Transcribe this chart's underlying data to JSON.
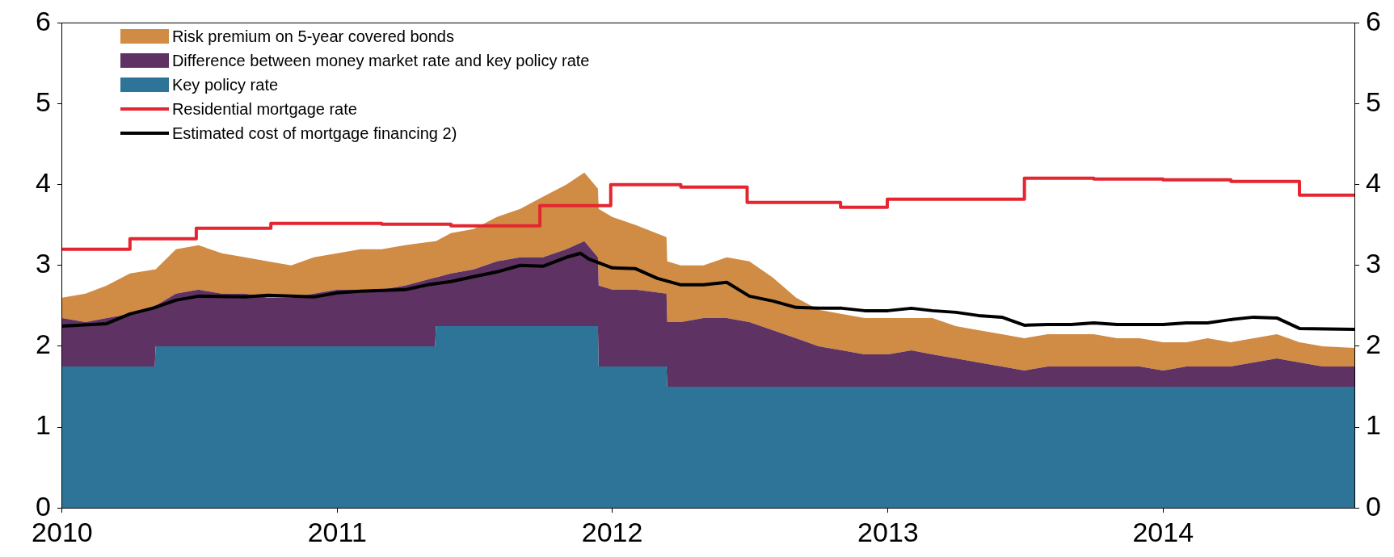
{
  "chart_data": {
    "type": "area",
    "stacked": true,
    "legend": "top left",
    "grid": false,
    "x": [
      "2010-01-01",
      "2010-02-01",
      "2010-03-01",
      "2010-04-01",
      "2010-05-04",
      "2010-05-05",
      "2010-06-01",
      "2010-07-01",
      "2010-08-01",
      "2010-09-01",
      "2010-10-01",
      "2010-11-01",
      "2010-12-01",
      "2011-01-01",
      "2011-02-01",
      "2011-03-01",
      "2011-04-01",
      "2011-05-11",
      "2011-05-12",
      "2011-06-01",
      "2011-07-01",
      "2011-08-01",
      "2011-09-01",
      "2011-10-01",
      "2011-11-01",
      "2011-11-25",
      "2011-12-13",
      "2011-12-14",
      "2012-01-01",
      "2012-02-01",
      "2012-03-13",
      "2012-03-14",
      "2012-04-01",
      "2012-05-01",
      "2012-06-01",
      "2012-07-01",
      "2012-08-01",
      "2012-09-01",
      "2012-10-01",
      "2012-11-01",
      "2012-12-01",
      "2013-01-01",
      "2013-02-01",
      "2013-03-01",
      "2013-04-01",
      "2013-05-01",
      "2013-06-01",
      "2013-07-01",
      "2013-08-01",
      "2013-09-01",
      "2013-10-01",
      "2013-11-01",
      "2013-12-01",
      "2014-01-01",
      "2014-02-01",
      "2014-03-01",
      "2014-04-01",
      "2014-05-01",
      "2014-06-01",
      "2014-07-01",
      "2014-08-01",
      "2014-09-12"
    ],
    "series": [
      {
        "name": "Key policy rate",
        "color": "#2e7499",
        "values": [
          1.75,
          1.75,
          1.75,
          1.75,
          1.75,
          2.0,
          2.0,
          2.0,
          2.0,
          2.0,
          2.0,
          2.0,
          2.0,
          2.0,
          2.0,
          2.0,
          2.0,
          2.0,
          2.25,
          2.25,
          2.25,
          2.25,
          2.25,
          2.25,
          2.25,
          2.25,
          2.25,
          1.75,
          1.75,
          1.75,
          1.75,
          1.5,
          1.5,
          1.5,
          1.5,
          1.5,
          1.5,
          1.5,
          1.5,
          1.5,
          1.5,
          1.5,
          1.5,
          1.5,
          1.5,
          1.5,
          1.5,
          1.5,
          1.5,
          1.5,
          1.5,
          1.5,
          1.5,
          1.5,
          1.5,
          1.5,
          1.5,
          1.5,
          1.5,
          1.5,
          1.5,
          1.5
        ]
      },
      {
        "name": "Difference between money market rate and key policy rate",
        "color": "#5e3262",
        "values": [
          0.6,
          0.55,
          0.6,
          0.65,
          0.75,
          0.5,
          0.65,
          0.7,
          0.65,
          0.65,
          0.6,
          0.6,
          0.65,
          0.7,
          0.7,
          0.7,
          0.75,
          0.85,
          0.6,
          0.65,
          0.7,
          0.8,
          0.85,
          0.85,
          0.95,
          1.05,
          0.85,
          1.0,
          0.95,
          0.95,
          0.9,
          0.8,
          0.8,
          0.85,
          0.85,
          0.8,
          0.7,
          0.6,
          0.5,
          0.45,
          0.4,
          0.4,
          0.45,
          0.4,
          0.35,
          0.3,
          0.25,
          0.2,
          0.25,
          0.25,
          0.25,
          0.25,
          0.25,
          0.2,
          0.25,
          0.25,
          0.25,
          0.3,
          0.35,
          0.3,
          0.25,
          0.25
        ]
      },
      {
        "name": "Risk premium on 5-year covered bonds",
        "color": "#d08c45",
        "values": [
          0.25,
          0.35,
          0.4,
          0.5,
          0.45,
          0.45,
          0.55,
          0.55,
          0.5,
          0.45,
          0.45,
          0.4,
          0.45,
          0.45,
          0.5,
          0.5,
          0.5,
          0.45,
          0.45,
          0.5,
          0.5,
          0.55,
          0.6,
          0.75,
          0.8,
          0.85,
          0.85,
          0.95,
          0.9,
          0.8,
          0.7,
          0.75,
          0.7,
          0.65,
          0.75,
          0.75,
          0.65,
          0.5,
          0.45,
          0.45,
          0.45,
          0.45,
          0.4,
          0.45,
          0.4,
          0.4,
          0.4,
          0.4,
          0.4,
          0.4,
          0.4,
          0.35,
          0.35,
          0.35,
          0.3,
          0.35,
          0.3,
          0.3,
          0.3,
          0.25,
          0.25,
          0.23
        ]
      },
      {
        "name": "Residential mortgage rate",
        "type": "step",
        "color": "#e3262f",
        "x": [
          "2010-01-01",
          "2010-04-01",
          "2010-06-28",
          "2010-10-05",
          "2011-03-01",
          "2011-06-01",
          "2011-09-27",
          "2011-12-30",
          "2012-04-01",
          "2012-06-28",
          "2012-10-30",
          "2012-12-31",
          "2013-07-01",
          "2013-10-01",
          "2014-01-01",
          "2014-04-01",
          "2014-07-01",
          "2014-09-12"
        ],
        "values": [
          3.2,
          3.33,
          3.46,
          3.52,
          3.51,
          3.49,
          3.74,
          4.0,
          3.97,
          3.78,
          3.72,
          3.82,
          4.08,
          4.07,
          4.06,
          4.04,
          3.87,
          3.87
        ]
      },
      {
        "name": "Estimated cost of mortgage financing 2)",
        "type": "line",
        "color": "#000000",
        "x": [
          "2010-01-01",
          "2010-03-01",
          "2010-04-01",
          "2010-05-01",
          "2010-06-01",
          "2010-07-01",
          "2010-09-01",
          "2010-10-01",
          "2010-12-01",
          "2011-01-01",
          "2011-02-01",
          "2011-04-01",
          "2011-05-01",
          "2011-06-01",
          "2011-07-01",
          "2011-08-01",
          "2011-09-01",
          "2011-10-01",
          "2011-11-01",
          "2011-11-20",
          "2011-12-01",
          "2012-01-01",
          "2012-02-01",
          "2012-03-01",
          "2012-04-01",
          "2012-05-01",
          "2012-06-01",
          "2012-07-01",
          "2012-08-01",
          "2012-09-01",
          "2012-10-01",
          "2012-11-01",
          "2012-12-01",
          "2013-01-01",
          "2013-02-01",
          "2013-03-01",
          "2013-04-01",
          "2013-05-01",
          "2013-06-01",
          "2013-07-01",
          "2013-08-01",
          "2013-09-01",
          "2013-10-01",
          "2013-11-01",
          "2014-01-01",
          "2014-02-01",
          "2014-03-01",
          "2014-04-01",
          "2014-05-01",
          "2014-06-01",
          "2014-07-01",
          "2014-09-12"
        ],
        "values": [
          2.25,
          2.28,
          2.4,
          2.47,
          2.57,
          2.62,
          2.61,
          2.63,
          2.61,
          2.66,
          2.68,
          2.7,
          2.76,
          2.8,
          2.86,
          2.92,
          3.0,
          2.99,
          3.1,
          3.15,
          3.08,
          2.97,
          2.96,
          2.84,
          2.76,
          2.76,
          2.79,
          2.62,
          2.56,
          2.48,
          2.47,
          2.47,
          2.44,
          2.44,
          2.47,
          2.44,
          2.42,
          2.38,
          2.36,
          2.26,
          2.27,
          2.27,
          2.29,
          2.27,
          2.27,
          2.29,
          2.29,
          2.33,
          2.36,
          2.35,
          2.22,
          2.21
        ]
      }
    ],
    "xlim": [
      "2010-01-01",
      "2014-09-12"
    ],
    "xticks": [
      "2010",
      "2011",
      "2012",
      "2013",
      "2014"
    ],
    "ylim": [
      0,
      6
    ],
    "yticks": [
      0,
      1,
      2,
      3,
      4,
      5,
      6
    ],
    "y2lim": [
      0,
      6
    ],
    "y2ticks": [
      0,
      1,
      2,
      3,
      4,
      5,
      6
    ]
  }
}
